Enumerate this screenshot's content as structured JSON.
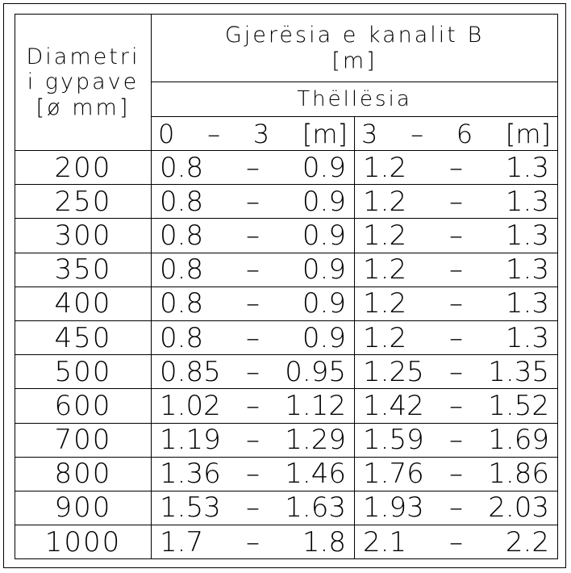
{
  "header": {
    "diameter_label_line1": "Diametri",
    "diameter_label_line2": "i gypave",
    "diameter_label_line3": "[ø mm]",
    "width_label_line1": "Gjerësia e kanalit B",
    "width_label_line2": "[m]",
    "depth_label": "Thëllësia",
    "depth_range_1": [
      "0",
      "–",
      "3",
      "[m]"
    ],
    "depth_range_2": [
      "3",
      "–",
      "6",
      "[m]"
    ]
  },
  "rows": [
    {
      "diameter": "200",
      "r1": [
        "0.8",
        "–",
        "0.9"
      ],
      "r2": [
        "1.2",
        "–",
        "1.3"
      ]
    },
    {
      "diameter": "250",
      "r1": [
        "0.8",
        "–",
        "0.9"
      ],
      "r2": [
        "1.2",
        "–",
        "1.3"
      ]
    },
    {
      "diameter": "300",
      "r1": [
        "0.8",
        "–",
        "0.9"
      ],
      "r2": [
        "1.2",
        "–",
        "1.3"
      ]
    },
    {
      "diameter": "350",
      "r1": [
        "0.8",
        "–",
        "0.9"
      ],
      "r2": [
        "1.2",
        "–",
        "1.3"
      ]
    },
    {
      "diameter": "400",
      "r1": [
        "0.8",
        "–",
        "0.9"
      ],
      "r2": [
        "1.2",
        "–",
        "1.3"
      ]
    },
    {
      "diameter": "450",
      "r1": [
        "0.8",
        "–",
        "0.9"
      ],
      "r2": [
        "1.2",
        "–",
        "1.3"
      ]
    },
    {
      "diameter": "500",
      "r1": [
        "0.85",
        "–",
        "0.95"
      ],
      "r2": [
        "1.25",
        "–",
        "1.35"
      ]
    },
    {
      "diameter": "600",
      "r1": [
        "1.02",
        "–",
        "1.12"
      ],
      "r2": [
        "1.42",
        "–",
        "1.52"
      ]
    },
    {
      "diameter": "700",
      "r1": [
        "1.19",
        "–",
        "1.29"
      ],
      "r2": [
        "1.59",
        "–",
        "1.69"
      ]
    },
    {
      "diameter": "800",
      "r1": [
        "1.36",
        "–",
        "1.46"
      ],
      "r2": [
        "1.76",
        "–",
        "1.86"
      ]
    },
    {
      "diameter": "900",
      "r1": [
        "1.53",
        "–",
        "1.63"
      ],
      "r2": [
        "1.93",
        "–",
        "2.03"
      ]
    },
    {
      "diameter": "1000",
      "r1": [
        "1.7",
        "–",
        "1.8"
      ],
      "r2": [
        "2.1",
        "–",
        "2.2"
      ]
    }
  ]
}
